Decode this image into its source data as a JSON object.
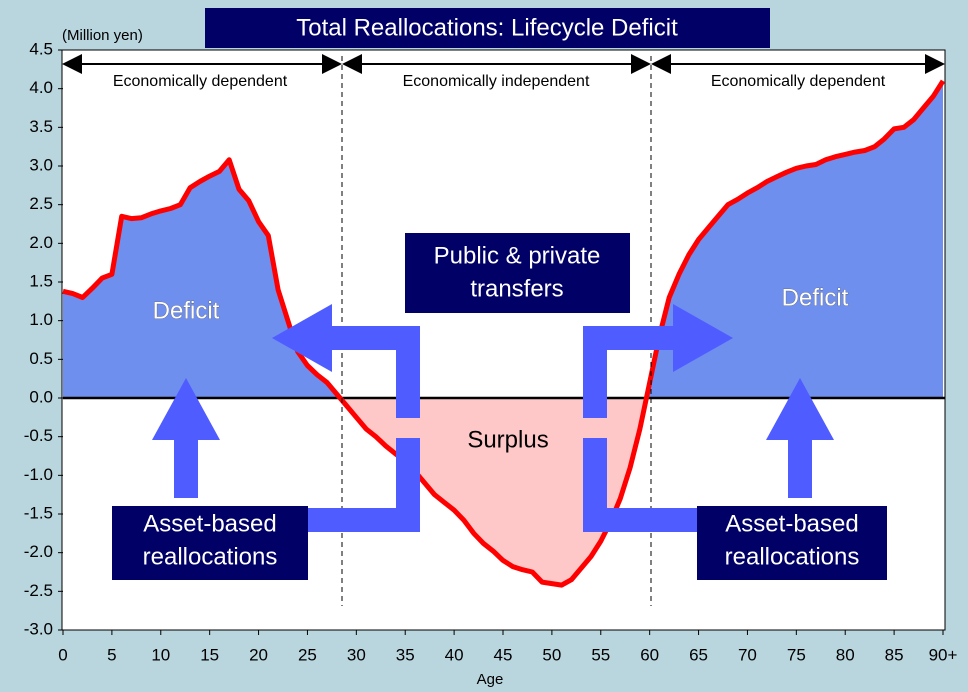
{
  "chart_data": {
    "type": "area-line",
    "title": "Total Reallocations: Lifecycle Deficit",
    "y_unit": "(Million yen)",
    "x_label": "Age",
    "x": [
      0,
      1,
      2,
      3,
      4,
      5,
      6,
      7,
      8,
      9,
      10,
      11,
      12,
      13,
      14,
      15,
      16,
      17,
      18,
      19,
      20,
      21,
      22,
      23,
      24,
      25,
      26,
      27,
      28,
      29,
      30,
      31,
      32,
      33,
      34,
      35,
      36,
      37,
      38,
      39,
      40,
      41,
      42,
      43,
      44,
      45,
      46,
      47,
      48,
      49,
      50,
      51,
      52,
      53,
      54,
      55,
      56,
      57,
      58,
      59,
      60,
      61,
      62,
      63,
      64,
      65,
      66,
      67,
      68,
      69,
      70,
      71,
      72,
      73,
      74,
      75,
      76,
      77,
      78,
      79,
      80,
      81,
      82,
      83,
      84,
      85,
      86,
      87,
      88,
      89,
      90
    ],
    "series": [
      {
        "name": "Lifecycle deficit",
        "color": "#ff0000",
        "positive_fill": "#6f8fef",
        "negative_fill": "#ffc8c8",
        "values": [
          1.38,
          1.35,
          1.3,
          1.42,
          1.55,
          1.6,
          2.35,
          2.32,
          2.33,
          2.38,
          2.42,
          2.45,
          2.5,
          2.72,
          2.8,
          2.87,
          2.93,
          3.08,
          2.7,
          2.55,
          2.28,
          2.1,
          1.4,
          1.0,
          0.6,
          0.42,
          0.3,
          0.2,
          0.05,
          -0.1,
          -0.25,
          -0.4,
          -0.5,
          -0.62,
          -0.72,
          -0.82,
          -0.95,
          -1.1,
          -1.25,
          -1.35,
          -1.45,
          -1.58,
          -1.75,
          -1.88,
          -1.98,
          -2.1,
          -2.18,
          -2.22,
          -2.25,
          -2.38,
          -2.4,
          -2.42,
          -2.35,
          -2.2,
          -2.05,
          -1.85,
          -1.6,
          -1.3,
          -0.9,
          -0.4,
          0.2,
          0.8,
          1.3,
          1.6,
          1.85,
          2.05,
          2.2,
          2.35,
          2.5,
          2.57,
          2.65,
          2.72,
          2.8,
          2.86,
          2.92,
          2.97,
          3.0,
          3.02,
          3.08,
          3.12,
          3.15,
          3.18,
          3.2,
          3.25,
          3.35,
          3.48,
          3.5,
          3.6,
          3.75,
          3.9,
          4.1
        ]
      }
    ],
    "xlim": [
      0,
      90
    ],
    "ylim": [
      -3.0,
      4.5
    ],
    "xticks": [
      0,
      5,
      10,
      15,
      20,
      25,
      30,
      35,
      40,
      45,
      50,
      55,
      60,
      65,
      70,
      75,
      80,
      85,
      {
        "value": 90,
        "label": "90+"
      }
    ],
    "yticks": [
      {
        "value": 4.5,
        "label": "4.5"
      },
      {
        "value": 4,
        "label": "4.0"
      },
      {
        "value": 3.5,
        "label": "3.5"
      },
      {
        "value": 3,
        "label": "3.0"
      },
      {
        "value": 2.5,
        "label": "2.5"
      },
      {
        "value": 2,
        "label": "2.0"
      },
      {
        "value": 1.5,
        "label": "1.5"
      },
      {
        "value": 1,
        "label": "1.0"
      },
      {
        "value": 0.5,
        "label": "0.5"
      },
      {
        "value": 0,
        "label": "0.0"
      },
      {
        "value": -0.5,
        "label": "-0.5"
      },
      {
        "value": -1,
        "label": "-1.0"
      },
      {
        "value": -1.5,
        "label": "-1.5"
      },
      {
        "value": -2,
        "label": "-2.0"
      },
      {
        "value": -2.5,
        "label": "-2.5"
      },
      {
        "value": -3,
        "label": "-3.0"
      }
    ],
    "grid": false,
    "regions": [
      "Economically dependent",
      "Economically independent",
      "Economically dependent"
    ],
    "annotations": {
      "deficit_left": "Deficit",
      "deficit_right": "Deficit",
      "surplus": "Surplus",
      "transfers": [
        "Public & private",
        "transfers"
      ],
      "asset_left": [
        "Asset-based",
        "reallocations"
      ],
      "asset_right": [
        "Asset-based",
        "reallocations"
      ]
    }
  }
}
